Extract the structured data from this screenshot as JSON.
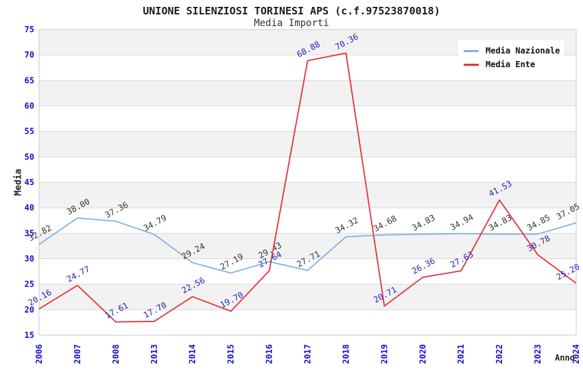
{
  "chart_data": {
    "type": "line",
    "title": "UNIONE SILENZIOSI TORINESI APS (c.f.97523870018)",
    "subtitle": "Media Importi",
    "xlabel": "Anno",
    "ylabel": "Media",
    "categories": [
      "2006",
      "2007",
      "2008",
      "2013",
      "2014",
      "2015",
      "2016",
      "2017",
      "2018",
      "2019",
      "2020",
      "2021",
      "2022",
      "2023",
      "2024"
    ],
    "series": [
      {
        "name": "Media Nazionale",
        "color": "#7fb2e5",
        "label_color": "#333333",
        "values": [
          32.82,
          38.0,
          37.36,
          34.79,
          29.24,
          27.19,
          29.43,
          27.71,
          34.32,
          34.68,
          34.83,
          34.94,
          34.83,
          34.85,
          37.05
        ]
      },
      {
        "name": "Media Ente",
        "color": "#e53238",
        "label_color": "#2323b8",
        "values": [
          20.16,
          24.77,
          17.61,
          17.7,
          22.56,
          19.7,
          27.64,
          68.88,
          70.36,
          20.71,
          26.36,
          27.63,
          41.53,
          30.78,
          25.2
        ]
      }
    ],
    "ylim": [
      15,
      75
    ],
    "ytick_step": 5,
    "axis_tick_color": "#1212cc",
    "grid": true,
    "legend_position": "top-right",
    "band_colors": [
      "#ffffff",
      "#f2f2f2"
    ]
  }
}
